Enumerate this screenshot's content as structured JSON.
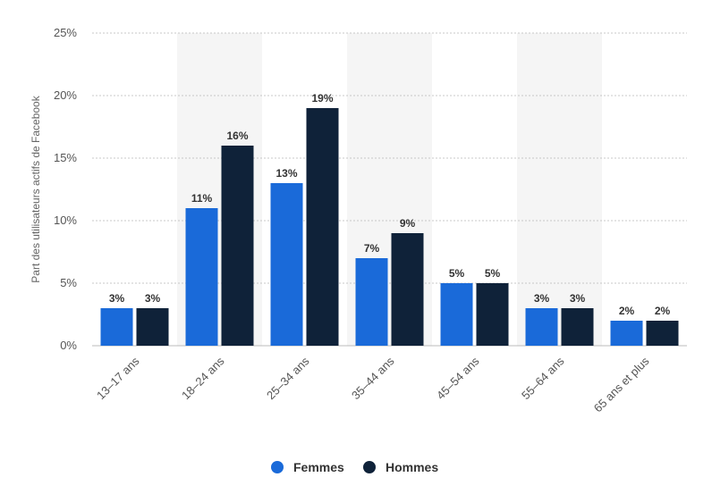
{
  "chart_data": {
    "type": "bar",
    "title": "",
    "xlabel": "",
    "ylabel": "Part des utilisateurs actifs de Facebook",
    "categories": [
      "13–17 ans",
      "18–24 ans",
      "25–34 ans",
      "35–44 ans",
      "45–54 ans",
      "55–64 ans",
      "65 ans et plus"
    ],
    "series": [
      {
        "name": "Femmes",
        "values": [
          3,
          11,
          13,
          7,
          5,
          3,
          2
        ],
        "labels": [
          "3%",
          "11%",
          "13%",
          "7%",
          "5%",
          "3%",
          "2%"
        ],
        "color": "#1a6ad9"
      },
      {
        "name": "Hommes",
        "values": [
          3,
          16,
          19,
          9,
          5,
          3,
          2
        ],
        "labels": [
          "3%",
          "16%",
          "19%",
          "9%",
          "5%",
          "3%",
          "2%"
        ],
        "color": "#0f2239"
      }
    ],
    "yticks": [
      "0%",
      "5%",
      "10%",
      "15%",
      "20%",
      "25%"
    ],
    "ylim": [
      0,
      25
    ],
    "grid": true,
    "legend_position": "bottom-center"
  }
}
